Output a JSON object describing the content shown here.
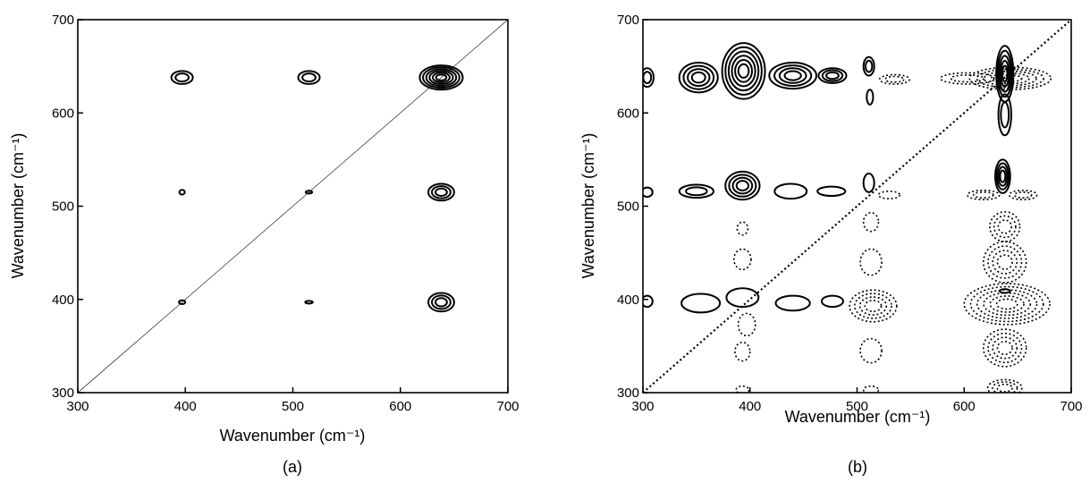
{
  "chart_data": [
    {
      "panel_label": "(a)",
      "type": "contour",
      "xlabel": "Wavenumber (cm⁻¹)",
      "ylabel": "Wavenumber (cm⁻¹)",
      "xlim": [
        300,
        700
      ],
      "ylim": [
        300,
        700
      ],
      "xticks": [
        300,
        400,
        500,
        600,
        700
      ],
      "yticks": [
        300,
        400,
        500,
        600,
        700
      ],
      "diagonal": "thin-solid",
      "peaks": [
        {
          "x": 397,
          "y": 638,
          "sign": "positive",
          "levels": 2,
          "rx": 10,
          "ry": 7
        },
        {
          "x": 515,
          "y": 638,
          "sign": "positive",
          "levels": 2,
          "rx": 10,
          "ry": 7
        },
        {
          "x": 638,
          "y": 638,
          "sign": "positive",
          "levels": 6,
          "rx": 20,
          "ry": 13
        },
        {
          "x": 397,
          "y": 515,
          "sign": "positive",
          "levels": 1,
          "rx": 2.5,
          "ry": 2.5
        },
        {
          "x": 515,
          "y": 515,
          "sign": "positive",
          "levels": 1,
          "rx": 3,
          "ry": 1.5
        },
        {
          "x": 638,
          "y": 515,
          "sign": "positive",
          "levels": 3,
          "rx": 12,
          "ry": 9
        },
        {
          "x": 397,
          "y": 397,
          "sign": "positive",
          "levels": 1,
          "rx": 3,
          "ry": 2
        },
        {
          "x": 515,
          "y": 397,
          "sign": "positive",
          "levels": 1,
          "rx": 3.5,
          "ry": 1.5
        },
        {
          "x": 638,
          "y": 397,
          "sign": "positive",
          "levels": 3,
          "rx": 12,
          "ry": 10
        }
      ]
    },
    {
      "panel_label": "(b)",
      "type": "contour",
      "xlabel": "Wavenumber (cm⁻¹)",
      "ylabel": "Wavenumber (cm⁻¹)",
      "xlim": [
        300,
        700
      ],
      "ylim": [
        300,
        700
      ],
      "xticks": [
        300,
        400,
        500,
        600,
        700
      ],
      "yticks": [
        300,
        400,
        500,
        600,
        700
      ],
      "diagonal": "dotted",
      "peaks": [
        {
          "x": 304,
          "y": 638,
          "sign": "positive",
          "levels": 2,
          "rx": 6,
          "ry": 10
        },
        {
          "x": 352,
          "y": 638,
          "sign": "positive",
          "levels": 4,
          "rx": 18,
          "ry": 16
        },
        {
          "x": 394,
          "y": 645,
          "sign": "positive",
          "levels": 6,
          "rx": 20,
          "ry": 30
        },
        {
          "x": 440,
          "y": 640,
          "sign": "positive",
          "levels": 4,
          "rx": 22,
          "ry": 14
        },
        {
          "x": 477,
          "y": 640,
          "sign": "positive",
          "levels": 3,
          "rx": 13,
          "ry": 8
        },
        {
          "x": 511,
          "y": 650,
          "sign": "positive",
          "levels": 2,
          "rx": 5,
          "ry": 10
        },
        {
          "x": 512,
          "y": 617,
          "sign": "positive",
          "levels": 1,
          "rx": 3,
          "ry": 8
        },
        {
          "x": 535,
          "y": 636,
          "sign": "negative",
          "levels": 2,
          "rx": 14,
          "ry": 5
        },
        {
          "x": 603,
          "y": 637,
          "sign": "negative",
          "levels": 2,
          "rx": 25,
          "ry": 6
        },
        {
          "x": 638,
          "y": 642,
          "sign": "positive",
          "levels": 5,
          "rx": 8,
          "ry": 30
        },
        {
          "x": 638,
          "y": 598,
          "sign": "positive",
          "levels": 2,
          "rx": 6,
          "ry": 22
        },
        {
          "x": 643,
          "y": 637,
          "sign": "negative",
          "levels": 5,
          "rx": 38,
          "ry": 12
        },
        {
          "x": 304,
          "y": 515,
          "sign": "positive",
          "levels": 1,
          "rx": 5,
          "ry": 5
        },
        {
          "x": 350,
          "y": 516,
          "sign": "positive",
          "levels": 2,
          "rx": 16,
          "ry": 7
        },
        {
          "x": 393,
          "y": 522,
          "sign": "positive",
          "levels": 4,
          "rx": 16,
          "ry": 15
        },
        {
          "x": 438,
          "y": 516,
          "sign": "positive",
          "levels": 1,
          "rx": 15,
          "ry": 8
        },
        {
          "x": 476,
          "y": 516,
          "sign": "positive",
          "levels": 1,
          "rx": 13,
          "ry": 5
        },
        {
          "x": 511,
          "y": 525,
          "sign": "positive",
          "levels": 1,
          "rx": 5,
          "ry": 10
        },
        {
          "x": 530,
          "y": 512,
          "sign": "negative",
          "levels": 1,
          "rx": 10,
          "ry": 4
        },
        {
          "x": 636,
          "y": 532,
          "sign": "positive",
          "levels": 4,
          "rx": 7,
          "ry": 18
        },
        {
          "x": 618,
          "y": 512,
          "sign": "negative",
          "levels": 2,
          "rx": 15,
          "ry": 5
        },
        {
          "x": 655,
          "y": 512,
          "sign": "negative",
          "levels": 2,
          "rx": 13,
          "ry": 5
        },
        {
          "x": 393,
          "y": 476,
          "sign": "negative",
          "levels": 1,
          "rx": 5,
          "ry": 7
        },
        {
          "x": 513,
          "y": 483,
          "sign": "negative",
          "levels": 1,
          "rx": 7,
          "ry": 10
        },
        {
          "x": 638,
          "y": 478,
          "sign": "negative",
          "levels": 3,
          "rx": 14,
          "ry": 16
        },
        {
          "x": 393,
          "y": 443,
          "sign": "negative",
          "levels": 1,
          "rx": 8,
          "ry": 11
        },
        {
          "x": 513,
          "y": 440,
          "sign": "negative",
          "levels": 1,
          "rx": 10,
          "ry": 14
        },
        {
          "x": 638,
          "y": 440,
          "sign": "negative",
          "levels": 4,
          "rx": 20,
          "ry": 22
        },
        {
          "x": 304,
          "y": 398,
          "sign": "positive",
          "levels": 1,
          "rx": 5,
          "ry": 6
        },
        {
          "x": 354,
          "y": 396,
          "sign": "positive",
          "levels": 1,
          "rx": 18,
          "ry": 10
        },
        {
          "x": 393,
          "y": 402,
          "sign": "positive",
          "levels": 1,
          "rx": 15,
          "ry": 10
        },
        {
          "x": 440,
          "y": 396,
          "sign": "positive",
          "levels": 1,
          "rx": 16,
          "ry": 8
        },
        {
          "x": 477,
          "y": 398,
          "sign": "positive",
          "levels": 1,
          "rx": 10,
          "ry": 6
        },
        {
          "x": 397,
          "y": 373,
          "sign": "negative",
          "levels": 1,
          "rx": 8,
          "ry": 12
        },
        {
          "x": 515,
          "y": 393,
          "sign": "negative",
          "levels": 4,
          "rx": 22,
          "ry": 17
        },
        {
          "x": 640,
          "y": 395,
          "sign": "negative",
          "levels": 6,
          "rx": 40,
          "ry": 22
        },
        {
          "x": 638,
          "y": 409,
          "sign": "positive",
          "levels": 1,
          "rx": 5,
          "ry": 2
        },
        {
          "x": 393,
          "y": 344,
          "sign": "negative",
          "levels": 1,
          "rx": 7,
          "ry": 10
        },
        {
          "x": 513,
          "y": 345,
          "sign": "negative",
          "levels": 1,
          "rx": 10,
          "ry": 13
        },
        {
          "x": 638,
          "y": 348,
          "sign": "negative",
          "levels": 4,
          "rx": 20,
          "ry": 20
        },
        {
          "x": 393,
          "y": 303,
          "sign": "negative",
          "levels": 1,
          "rx": 6,
          "ry": 4
        },
        {
          "x": 513,
          "y": 303,
          "sign": "negative",
          "levels": 1,
          "rx": 7,
          "ry": 4
        },
        {
          "x": 638,
          "y": 305,
          "sign": "negative",
          "levels": 3,
          "rx": 16,
          "ry": 9
        }
      ]
    }
  ]
}
